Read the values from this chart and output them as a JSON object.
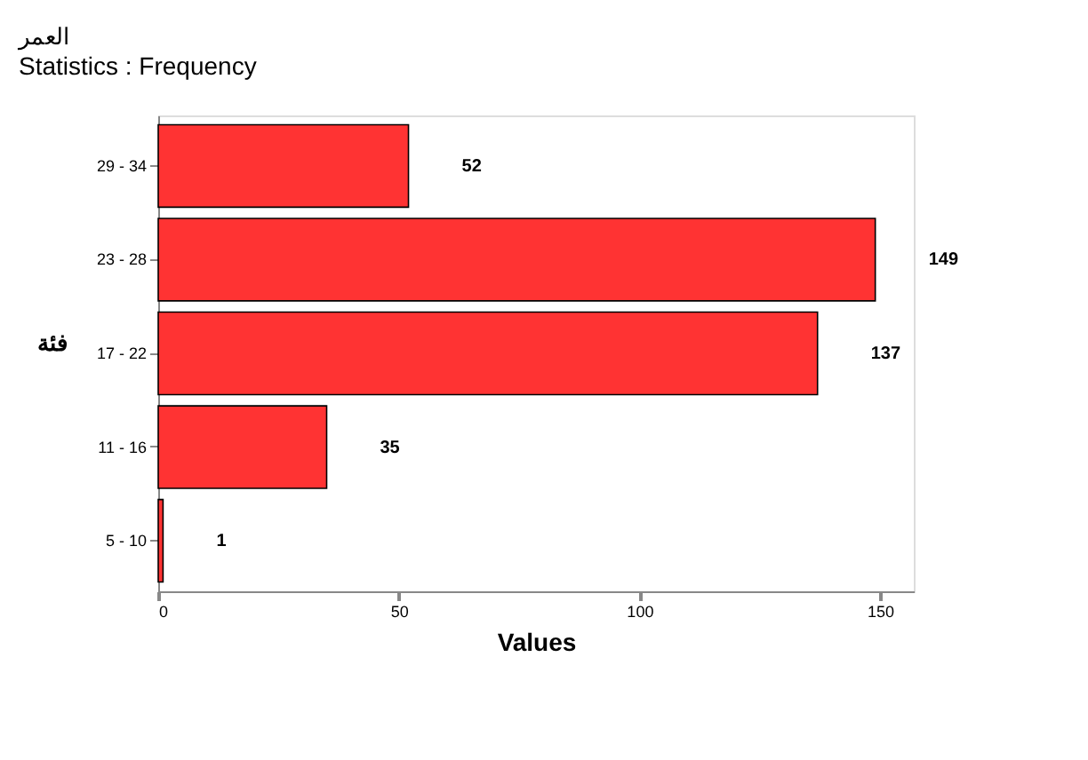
{
  "chart_data": {
    "type": "bar",
    "orientation": "horizontal",
    "title": "العمر",
    "subtitle": "Statistics : Frequency",
    "xlabel": "Values",
    "ylabel": "فئة",
    "categories": [
      "29 - 34",
      "23 - 28",
      "17 - 22",
      "11 - 16",
      "5 - 10"
    ],
    "values": [
      52,
      149,
      137,
      35,
      1
    ],
    "color": "#ff3333",
    "data_labels": true,
    "xlim": [
      0,
      157
    ],
    "xticks": [
      0,
      50,
      100,
      150
    ],
    "grid": false
  }
}
